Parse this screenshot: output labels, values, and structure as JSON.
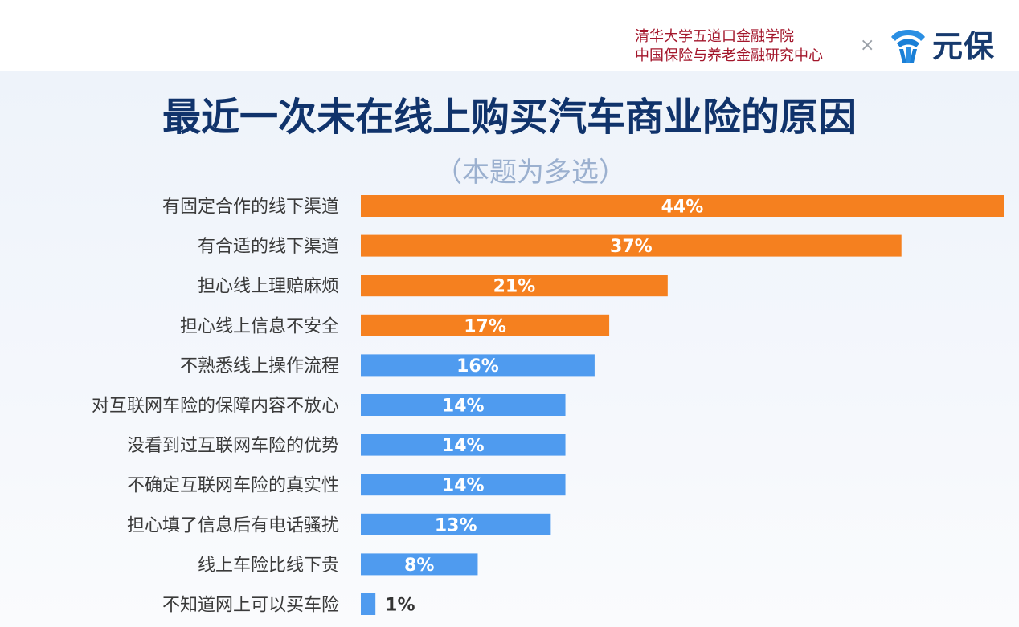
{
  "header": {
    "institution_line1": "清华大学五道口金融学院",
    "institution_line2": "中国保险与养老金融研究中心",
    "separator": "×",
    "brand_name": "元保",
    "brand_icon": "shield-logo-icon"
  },
  "colors": {
    "highlight_bar": "#f5801f",
    "normal_bar": "#4f9bef",
    "title": "#10336b",
    "institution": "#a3162b",
    "subtitle": "#9bb0cf"
  },
  "chart_data": {
    "type": "bar",
    "orientation": "horizontal",
    "title": "最近一次未在线上购买汽车商业险的原因",
    "subtitle": "（本题为多选）",
    "categories": [
      "有固定合作的线下渠道",
      "有合适的线下渠道",
      "担心线上理赔麻烦",
      "担心线上信息不安全",
      "不熟悉线上操作流程",
      "对互联网车险的保障内容不放心",
      "没看到过互联网车险的优势",
      "不确定互联网车险的真实性",
      "担心填了信息后有电话骚扰",
      "线上车险比线下贵",
      "不知道网上可以买车险"
    ],
    "values": [
      44,
      37,
      21,
      17,
      16,
      14,
      14,
      14,
      13,
      8,
      1
    ],
    "value_labels": [
      "44%",
      "37%",
      "21%",
      "17%",
      "16%",
      "14%",
      "14%",
      "14%",
      "13%",
      "8%",
      "1%"
    ],
    "highlighted_top": 4,
    "unit": "%",
    "xlim": [
      0,
      44
    ],
    "grid": false,
    "legend": "none"
  }
}
